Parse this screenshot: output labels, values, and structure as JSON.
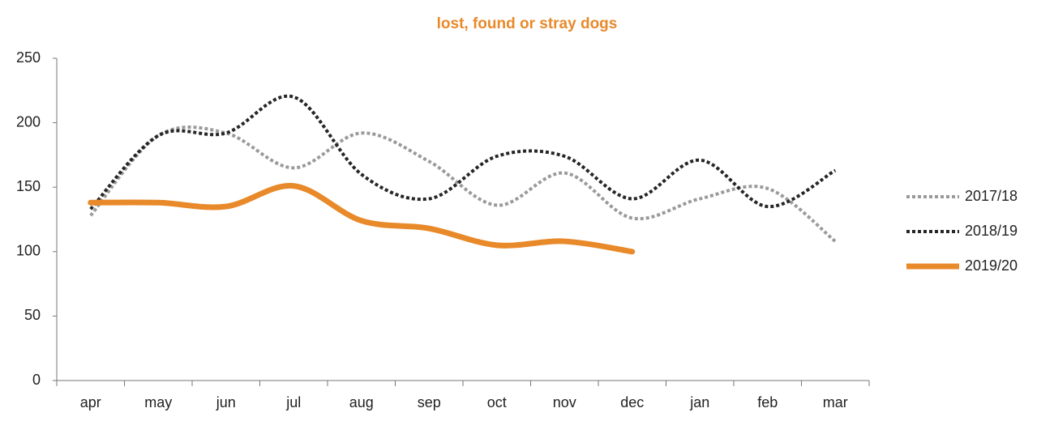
{
  "chart_data": {
    "type": "line",
    "title": "lost, found or stray dogs",
    "categories": [
      "apr",
      "may",
      "jun",
      "jul",
      "aug",
      "sep",
      "oct",
      "nov",
      "dec",
      "jan",
      "feb",
      "mar"
    ],
    "series": [
      {
        "name": "2017/18",
        "color": "#9a9a9a",
        "style": "dotted",
        "values": [
          128,
          190,
          192,
          165,
          192,
          170,
          136,
          161,
          126,
          141,
          149,
          108
        ]
      },
      {
        "name": "2018/19",
        "color": "#262626",
        "style": "dotted",
        "values": [
          133,
          190,
          192,
          220,
          160,
          141,
          174,
          174,
          141,
          171,
          135,
          163
        ]
      },
      {
        "name": "2019/20",
        "color": "#e8892a",
        "style": "solid",
        "values": [
          138,
          138,
          135,
          151,
          124,
          118,
          105,
          108,
          100,
          null,
          null,
          null
        ]
      }
    ],
    "ylim": [
      0,
      250
    ],
    "yticks": [
      0,
      50,
      100,
      150,
      200,
      250
    ],
    "legend": "right",
    "smooth": true
  }
}
